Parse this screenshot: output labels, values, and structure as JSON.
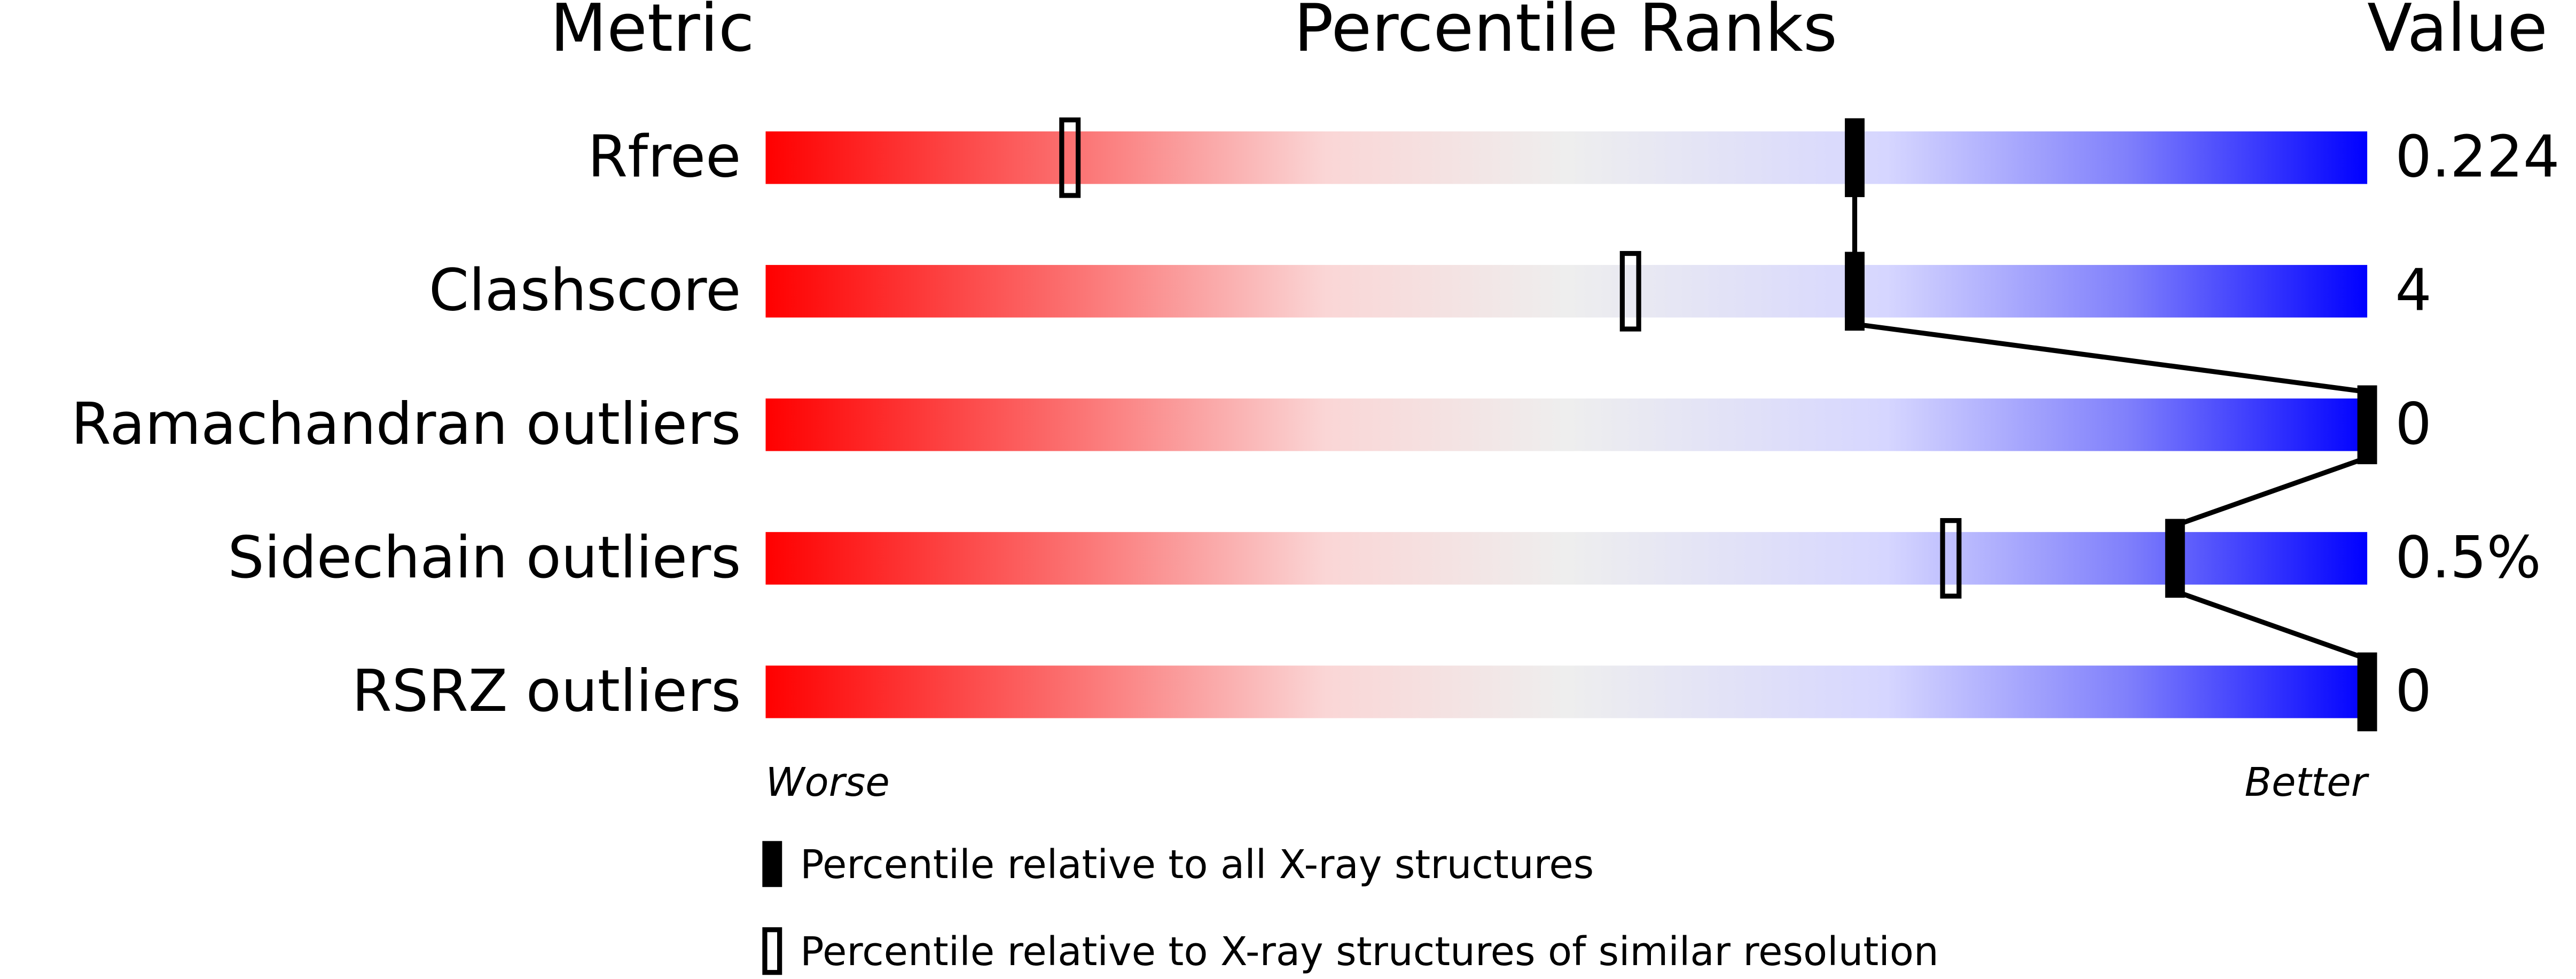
{
  "chart_data": {
    "type": "percentile-slider",
    "headers": {
      "metric": "Metric",
      "ranks": "Percentile Ranks",
      "value": "Value"
    },
    "categories": [
      "Rfree",
      "Clashscore",
      "Ramachandran outliers",
      "Sidechain outliers",
      "RSRZ outliers"
    ],
    "metric_values": [
      "0.224",
      "4",
      "0",
      "0.5%",
      "0"
    ],
    "xlim": [
      0,
      100
    ],
    "axis_ends": {
      "low": "Worse",
      "high": "Better"
    },
    "colors": {
      "low": "#ff0000",
      "mid": "#eeeeee",
      "high": "#0000ff"
    },
    "series": [
      {
        "name": "Percentile relative to all X-ray structures",
        "style": "filled",
        "values": [
          68,
          68,
          100,
          88,
          100
        ]
      },
      {
        "name": "Percentile relative to X-ray structures of similar resolution",
        "style": "open",
        "values": [
          19,
          54,
          null,
          74,
          null
        ]
      }
    ]
  }
}
